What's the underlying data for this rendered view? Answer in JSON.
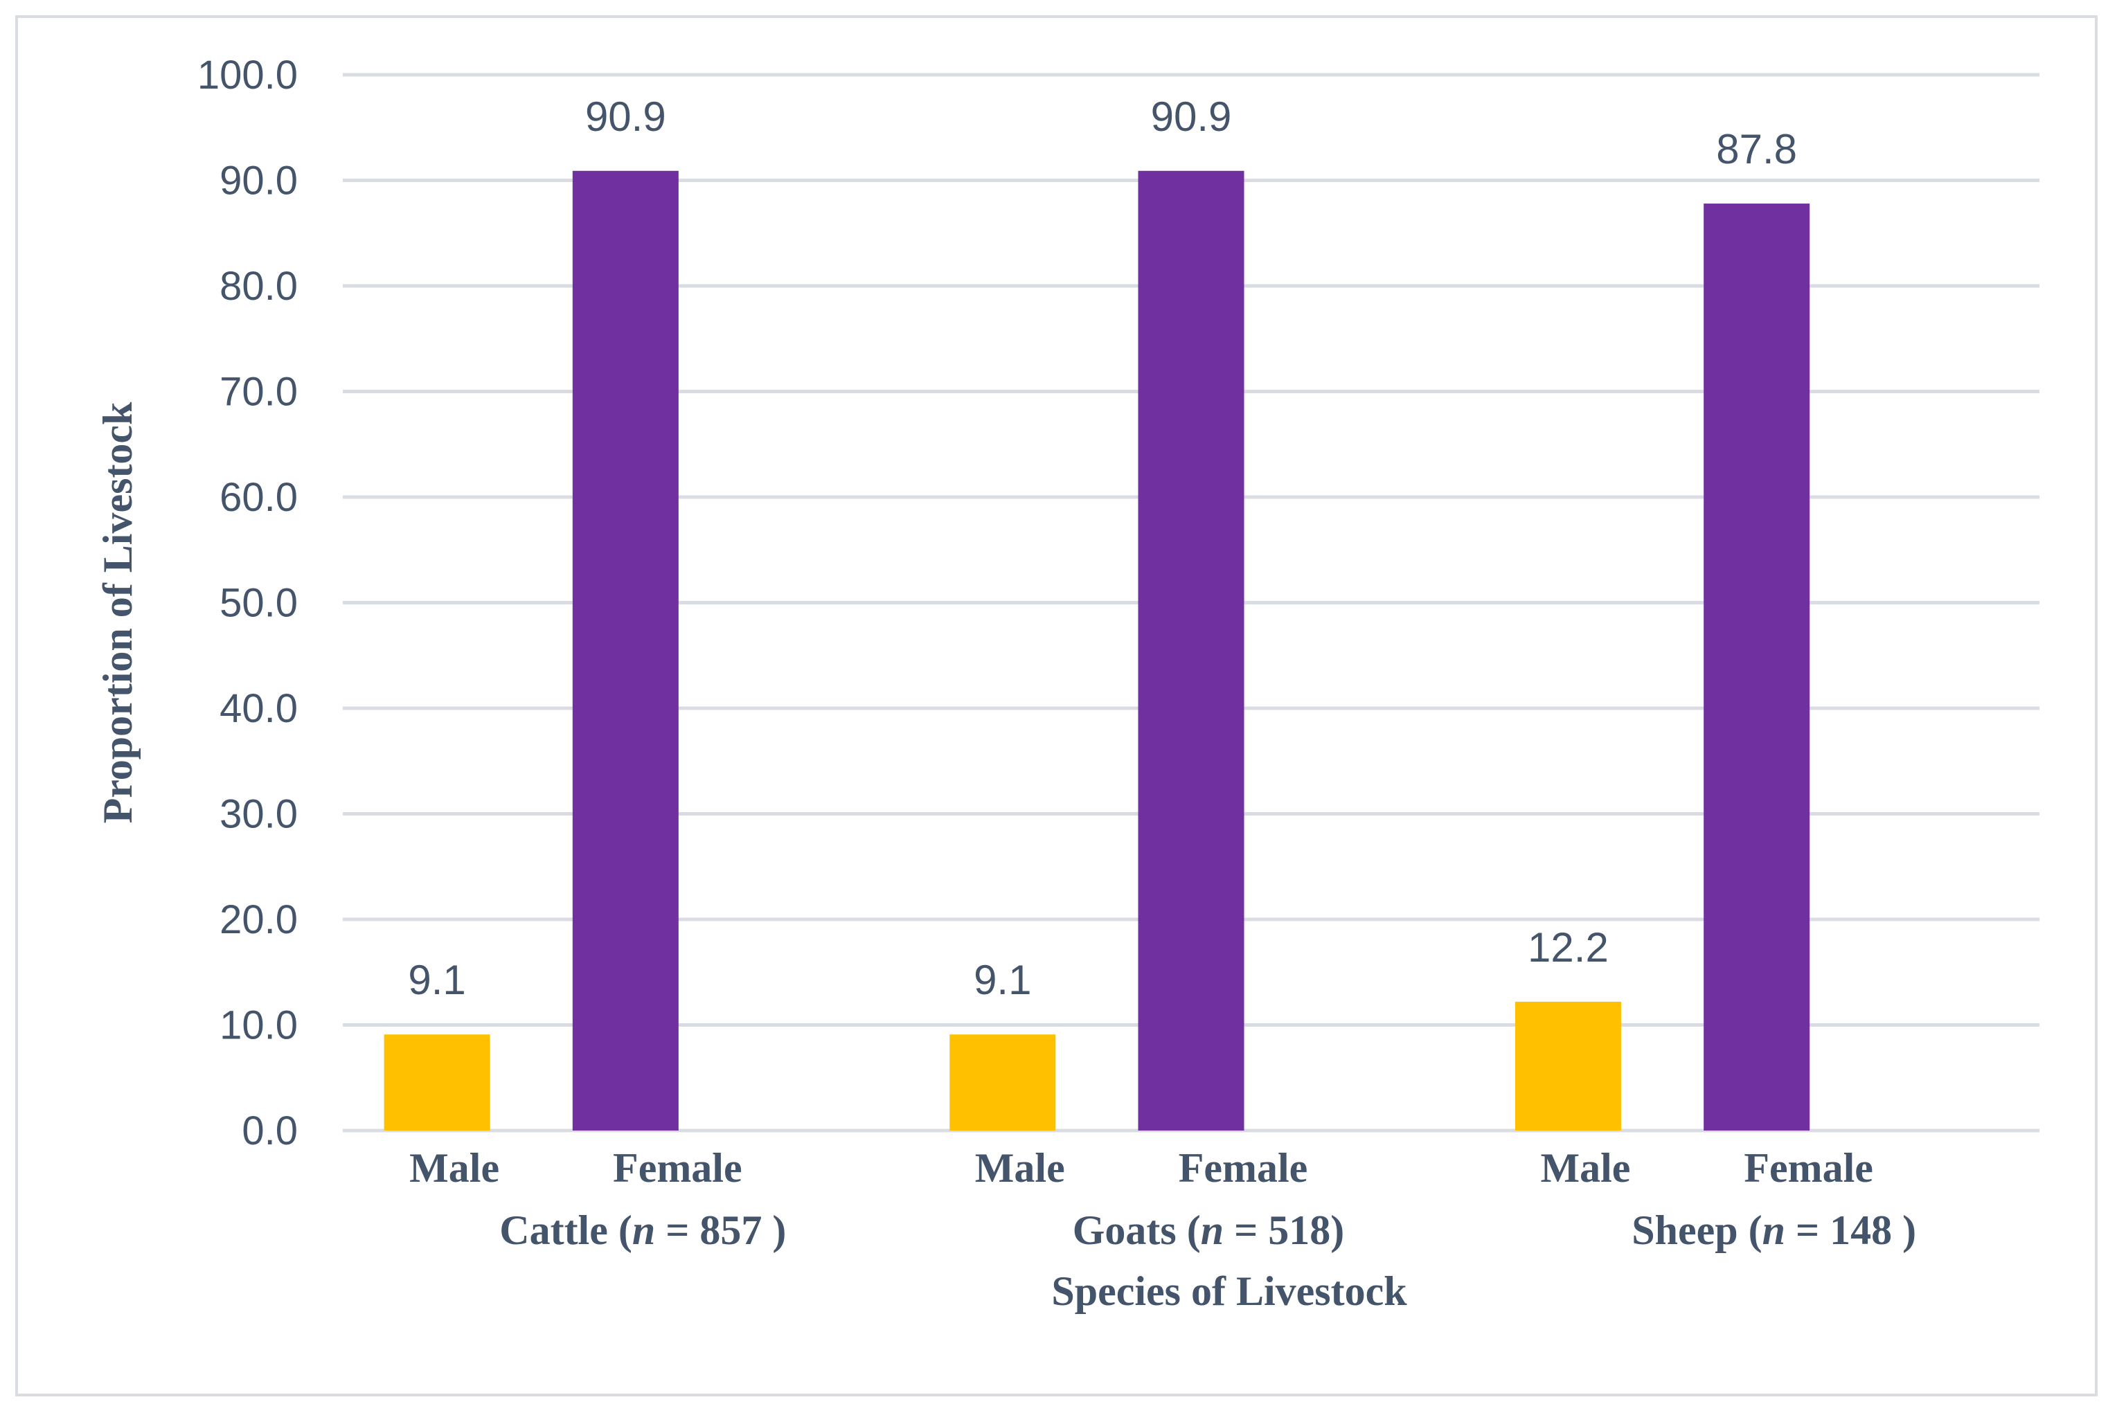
{
  "chart_data": {
    "type": "bar",
    "title": "",
    "xlabel": "Species of Livestock",
    "ylabel": "Proportion of Livestock",
    "ylim": [
      0,
      100
    ],
    "yticks": [
      "0.0",
      "10.0",
      "20.0",
      "30.0",
      "40.0",
      "50.0",
      "60.0",
      "70.0",
      "80.0",
      "90.0",
      "100.0"
    ],
    "grid": true,
    "groups": [
      {
        "label": "Cattle",
        "n_text": "857 )",
        "bars": [
          {
            "name": "Male",
            "value": 9.1,
            "label": "9.1"
          },
          {
            "name": "Female",
            "value": 90.9,
            "label": "90.9"
          }
        ]
      },
      {
        "label": "Goats",
        "n_text": "518)",
        "bars": [
          {
            "name": "Male",
            "value": 9.1,
            "label": "9.1"
          },
          {
            "name": "Female",
            "value": 90.9,
            "label": "90.9"
          }
        ]
      },
      {
        "label": "Sheep",
        "n_text": "148 )",
        "bars": [
          {
            "name": "Male",
            "value": 12.2,
            "label": "12.2"
          },
          {
            "name": "Female",
            "value": 87.8,
            "label": "87.8"
          }
        ]
      }
    ],
    "n_symbol": "n",
    "colors": {
      "Male": "#ffc000",
      "Female": "#7030a0",
      "grid": "#d9dde3",
      "text": "#44546a"
    }
  }
}
